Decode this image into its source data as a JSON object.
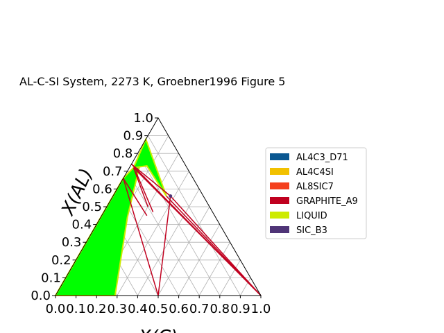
{
  "chart_data": {
    "type": "ternary-phase-diagram",
    "title": "AL-C-SI System, 2273 K, Groebner1996 Figure 5",
    "left_axis_label": "X(AL)",
    "bottom_axis_label": "X(C)",
    "left_ticks": [
      "0.0",
      "0.1",
      "0.2",
      "0.3",
      "0.4",
      "0.5",
      "0.6",
      "0.7",
      "0.8",
      "0.9",
      "1.0"
    ],
    "bottom_ticks": [
      "0.0",
      "0.1",
      "0.2",
      "0.3",
      "0.4",
      "0.5",
      "0.6",
      "0.7",
      "0.8",
      "0.9",
      "1.0"
    ],
    "grid": true,
    "legend_position": "right",
    "legend": [
      {
        "name": "AL4C3_D71",
        "color": "#0a5791"
      },
      {
        "name": "AL4C4SI",
        "color": "#f2c100"
      },
      {
        "name": "AL8SIC7",
        "color": "#f4401e"
      },
      {
        "name": "GRAPHITE_A9",
        "color": "#c0001f"
      },
      {
        "name": "LIQUID",
        "color": "#cdeb00"
      },
      {
        "name": "SIC_B3",
        "color": "#4f3477"
      }
    ],
    "regions": [
      {
        "phase": "LIQUID",
        "color": "#00ff00",
        "points": [
          [
            0.0,
            0.0
          ],
          [
            0.0,
            0.48
          ],
          [
            0.0,
            0.66
          ],
          [
            0.02,
            0.72
          ],
          [
            0.0,
            0.88
          ],
          [
            0.13,
            0.44
          ],
          [
            0.29,
            0.0
          ]
        ]
      },
      {
        "phase": "LIQUID",
        "color": "#00ff00",
        "points": [
          [
            0.0,
            0.88
          ],
          [
            0.02,
            0.72
          ],
          [
            0.08,
            0.73
          ],
          [
            0.26,
            0.56
          ]
        ]
      }
    ],
    "tie_lines": [
      {
        "phase": "GRAPHITE_A9",
        "from": [
          0.0,
          0.66
        ],
        "to": [
          0.5,
          0.0
        ]
      },
      {
        "phase": "GRAPHITE_A9",
        "from": [
          0.5,
          0.0
        ],
        "to": [
          0.28,
          0.56
        ]
      },
      {
        "phase": "GRAPHITE_A9",
        "from": [
          0.28,
          0.56
        ],
        "to": [
          0.0,
          0.74
        ]
      },
      {
        "phase": "GRAPHITE_A9",
        "from": [
          0.0,
          0.74
        ],
        "to": [
          1.0,
          0.0
        ]
      },
      {
        "phase": "GRAPHITE_A9",
        "from": [
          0.02,
          0.72
        ],
        "to": [
          1.0,
          0.0
        ]
      },
      {
        "phase": "GRAPHITE_A9",
        "from": [
          0.28,
          0.56
        ],
        "to": [
          1.0,
          0.0
        ]
      },
      {
        "phase": "GRAPHITE_A9",
        "from": [
          0.26,
          0.56
        ],
        "to": [
          1.0,
          0.0
        ]
      },
      {
        "phase": "GRAPHITE_A9",
        "from": [
          0.02,
          0.72
        ],
        "to": [
          0.2,
          0.5
        ]
      },
      {
        "phase": "GRAPHITE_A9",
        "from": [
          0.04,
          0.7
        ],
        "to": [
          0.24,
          0.47
        ]
      },
      {
        "phase": "GRAPHITE_A9",
        "from": [
          0.0,
          0.66
        ],
        "to": [
          0.22,
          0.45
        ]
      }
    ]
  }
}
